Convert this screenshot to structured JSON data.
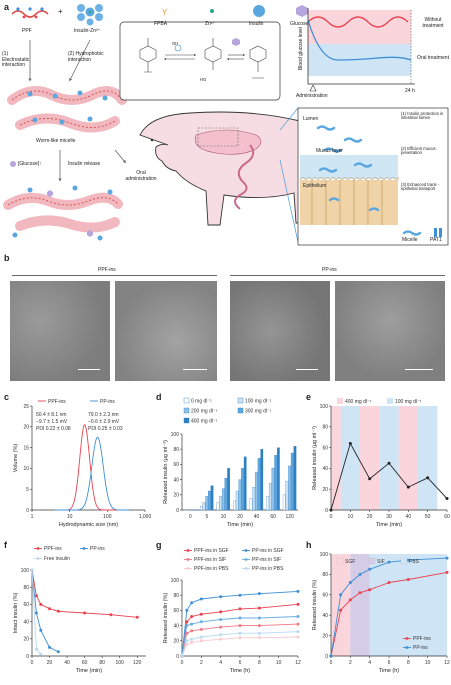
{
  "panel_labels": {
    "a": "a",
    "b": "b",
    "c": "c",
    "d": "d",
    "e": "e",
    "f": "f",
    "g": "g",
    "h": "h"
  },
  "panel_a": {
    "legend": {
      "fpba": "FPBA",
      "zn": "Zn²⁺",
      "insulin": "Insulin",
      "glucose": "Glucose"
    },
    "ppf": "PPF",
    "plus": "+",
    "insulin_zn": "Insulin-Zn²⁺",
    "step1": "(1) Electrostatic interaction",
    "step2": "(2) Hydrophobic interaction",
    "micelle": "Worm-like micelle",
    "glucose_up": "[Glucose]↑",
    "release": "Insulin release",
    "oral": "Oral administration",
    "chem_oh": "OH",
    "chem_ho": "HO",
    "bg_ylabel": "Blood glucose level",
    "without": "Without treatment",
    "oral_treat": "Oral treatment",
    "administration": "Administration",
    "t24": "24 h",
    "lumen": "Lumen",
    "mucus": "Mucus layer",
    "epithelium": "Epithelium",
    "note1": "(1) Insulin protection in intestinal lumen",
    "note2": "(2) Efficient mucus penetration",
    "note3": "(3) Enhanced trans -epithelial transport",
    "leg_micelle": "Micelle",
    "leg_pat1": "PAT1"
  },
  "panel_b": {
    "ppf_ins": "PPF-ins",
    "pp_ins": "PP-ins"
  },
  "colors": {
    "red": "#e8434f",
    "blue": "#3d8fd6",
    "lightred": "#f9c9cf",
    "lightblue": "#b9d9f2",
    "pinkbg": "#fbd5dc",
    "bluebg": "#cfe4f5",
    "purplebg": "#d5cde8"
  },
  "chart_data": [
    {
      "id": "c",
      "type": "line",
      "title": "",
      "xlabel": "Hydrodynamic size (nm)",
      "ylabel": "Volume (%)",
      "xscale": "log",
      "xlim": [
        1,
        1000
      ],
      "ylim": [
        0,
        25
      ],
      "xticks": [
        "1",
        "10",
        "100",
        "1,000"
      ],
      "yticks": [
        "0",
        "5",
        "10",
        "15",
        "20",
        "25"
      ],
      "legend": [
        "PPF-ins",
        "PP-ins"
      ],
      "annotations": {
        "PPF-ins": [
          "50.4 ± 8.1 nm",
          "−9.7 ± 1.5 mV",
          "PDI 0.22 ± 0.08"
        ],
        "PP-ins": [
          "79.0 ± 2.3 nm",
          "−0.6 ± 2.9 mV",
          "PDI 0.25 ± 0.03"
        ]
      },
      "series": [
        {
          "name": "PPF-ins",
          "peak_x": 25,
          "peak_y": 20.5,
          "log_sd": 0.13
        },
        {
          "name": "PP-ins",
          "peak_x": 55,
          "peak_y": 17.5,
          "log_sd": 0.15
        }
      ]
    },
    {
      "id": "d",
      "type": "bar",
      "title": "",
      "xlabel": "Time (min)",
      "ylabel": "Released insulin (μg ml⁻¹)",
      "ylim": [
        0,
        100
      ],
      "yticks": [
        "0",
        "20",
        "40",
        "60",
        "80",
        "100"
      ],
      "categories": [
        "0",
        "5",
        "10",
        "20",
        "40",
        "60",
        "120"
      ],
      "legend": [
        "0 mg dl⁻¹",
        "100 mg dl⁻¹",
        "200 mg dl⁻¹",
        "300 mg dl⁻¹",
        "400 mg dl⁻¹"
      ],
      "series": [
        {
          "name": "0 mg dl⁻¹",
          "values": [
            0,
            5,
            10,
            12,
            15,
            18,
            20
          ]
        },
        {
          "name": "100 mg dl⁻¹",
          "values": [
            0,
            10,
            18,
            25,
            30,
            35,
            38
          ]
        },
        {
          "name": "200 mg dl⁻¹",
          "values": [
            0,
            18,
            28,
            40,
            50,
            55,
            58
          ]
        },
        {
          "name": "300 mg dl⁻¹",
          "values": [
            0,
            25,
            42,
            55,
            68,
            72,
            75
          ]
        },
        {
          "name": "400 mg dl⁻¹",
          "values": [
            0,
            32,
            55,
            70,
            80,
            82,
            84
          ]
        }
      ]
    },
    {
      "id": "e",
      "type": "line",
      "title": "",
      "xlabel": "Time (min)",
      "ylabel": "Released insulin (μg ml⁻¹)",
      "xlim": [
        0,
        60
      ],
      "ylim": [
        0,
        100
      ],
      "xticks": [
        "0",
        "10",
        "20",
        "30",
        "40",
        "50",
        "60"
      ],
      "yticks": [
        "0",
        "20",
        "40",
        "60",
        "80",
        "100"
      ],
      "legend": [
        "400 mg dl⁻¹",
        "100 mg dl⁻¹"
      ],
      "x": [
        0,
        10,
        20,
        30,
        40,
        50,
        60
      ],
      "values": [
        0,
        64,
        30,
        45,
        22,
        31,
        11
      ]
    },
    {
      "id": "f",
      "type": "line",
      "title": "",
      "xlabel": "Time (min)",
      "ylabel": "Intact insulin (%)",
      "xlim": [
        0,
        130
      ],
      "ylim": [
        0,
        100
      ],
      "xticks": [
        "0",
        "20",
        "40",
        "60",
        "80",
        "100",
        "120"
      ],
      "yticks": [
        "0",
        "20",
        "40",
        "60",
        "80",
        "100"
      ],
      "series": [
        {
          "name": "PPF-ins",
          "x": [
            0,
            5,
            10,
            20,
            30,
            60,
            90,
            120
          ],
          "values": [
            100,
            70,
            60,
            55,
            52,
            50,
            48,
            45
          ]
        },
        {
          "name": "PP-ins",
          "x": [
            0,
            5,
            10,
            20,
            30
          ],
          "values": [
            100,
            50,
            30,
            10,
            5
          ]
        },
        {
          "name": "Free insulin",
          "x": [
            0,
            5,
            10
          ],
          "values": [
            100,
            8,
            2
          ]
        }
      ]
    },
    {
      "id": "g",
      "type": "line",
      "title": "",
      "xlabel": "Time (h)",
      "ylabel": "Released insulin (%)",
      "xlim": [
        0,
        12
      ],
      "ylim": [
        0,
        100
      ],
      "xticks": [
        "0",
        "2",
        "4",
        "6",
        "8",
        "10",
        "12"
      ],
      "yticks": [
        "0",
        "20",
        "40",
        "60",
        "80",
        "100"
      ],
      "series": [
        {
          "name": "PPF-ins in SGF",
          "x": [
            0,
            0.5,
            1,
            2,
            4,
            6,
            8,
            12
          ],
          "values": [
            0,
            45,
            52,
            55,
            58,
            62,
            63,
            68
          ]
        },
        {
          "name": "PP-ins in SGF",
          "x": [
            0,
            0.5,
            1,
            2,
            4,
            6,
            8,
            12
          ],
          "values": [
            0,
            60,
            70,
            75,
            78,
            80,
            82,
            85
          ]
        },
        {
          "name": "PPF-ins in SIF",
          "x": [
            0,
            0.5,
            1,
            2,
            4,
            6,
            8,
            12
          ],
          "values": [
            0,
            30,
            33,
            35,
            38,
            40,
            40,
            42
          ]
        },
        {
          "name": "PP-ins in SIF",
          "x": [
            0,
            0.5,
            1,
            2,
            4,
            6,
            8,
            12
          ],
          "values": [
            0,
            40,
            42,
            45,
            48,
            50,
            50,
            52
          ]
        },
        {
          "name": "PPF-ins in PBS",
          "x": [
            0,
            0.5,
            1,
            2,
            4,
            6,
            8,
            12
          ],
          "values": [
            0,
            15,
            18,
            20,
            22,
            24,
            24,
            25
          ]
        },
        {
          "name": "PP-ins in PBS",
          "x": [
            0,
            0.5,
            1,
            2,
            4,
            6,
            8,
            12
          ],
          "values": [
            0,
            20,
            22,
            25,
            28,
            30,
            30,
            32
          ]
        }
      ]
    },
    {
      "id": "h",
      "type": "line",
      "title": "",
      "xlabel": "Time (h)",
      "ylabel": "Released insulin (%)",
      "xlim": [
        0,
        12
      ],
      "ylim": [
        0,
        100
      ],
      "xticks": [
        "0",
        "2",
        "4",
        "6",
        "8",
        "10",
        "12"
      ],
      "yticks": [
        "0",
        "20",
        "40",
        "60",
        "80",
        "100"
      ],
      "regions": [
        "SGF",
        "SIF",
        "PBS"
      ],
      "series": [
        {
          "name": "PPF-ins",
          "x": [
            0,
            1,
            2,
            3,
            4,
            6,
            8,
            12
          ],
          "values": [
            0,
            45,
            55,
            62,
            65,
            72,
            75,
            82
          ]
        },
        {
          "name": "PP-ins",
          "x": [
            0,
            1,
            2,
            3,
            4,
            6,
            8,
            12
          ],
          "values": [
            0,
            60,
            72,
            80,
            85,
            92,
            94,
            96
          ]
        }
      ]
    }
  ]
}
